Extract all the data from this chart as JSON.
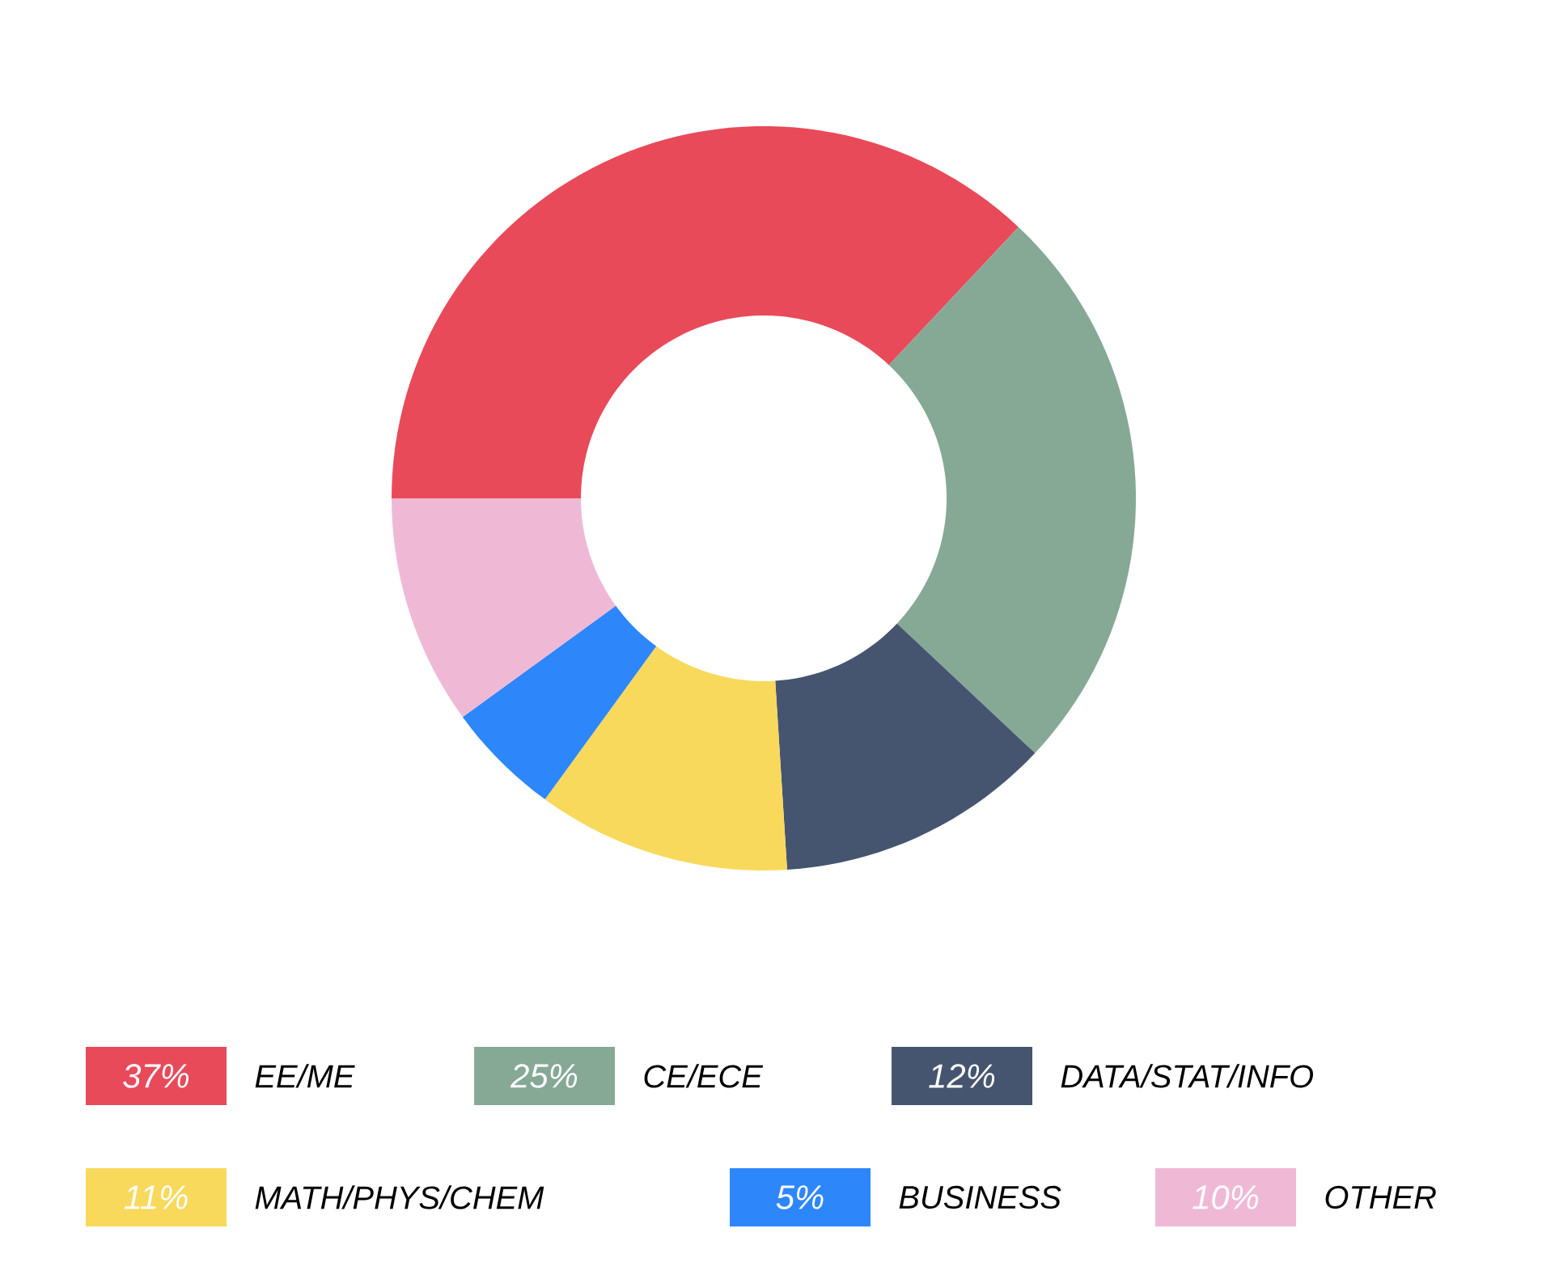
{
  "chart_data": {
    "type": "donut",
    "categories": [
      "EE/ME",
      "CE/ECE",
      "DATA/STAT/INFO",
      "MATH/PHYS/CHEM",
      "BUSINESS",
      "OTHER"
    ],
    "values": [
      37,
      25,
      12,
      11,
      5,
      10
    ],
    "colors": [
      "#e84a5a",
      "#86a996",
      "#46556f",
      "#f8d95c",
      "#2e86fb",
      "#efb9d6"
    ],
    "value_labels": [
      "37%",
      "25%",
      "12%",
      "11%",
      "5%",
      "10%"
    ],
    "legend": "bottom"
  }
}
